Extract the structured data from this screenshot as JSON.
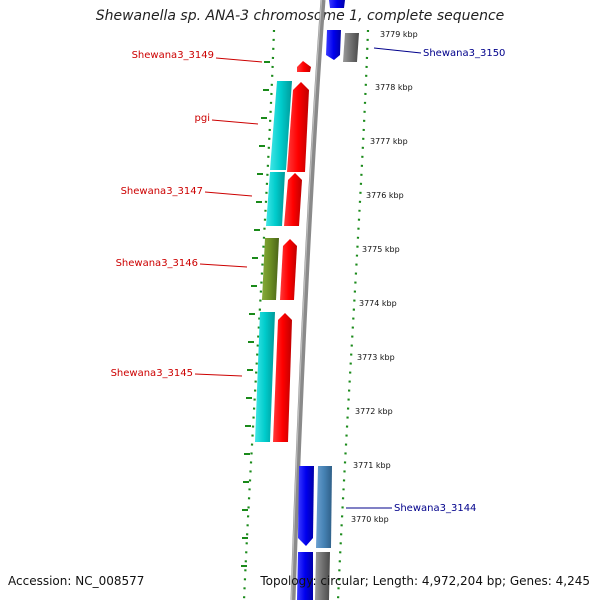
{
  "title": "Shewanella sp. ANA-3 chromosome 1, complete sequence",
  "footer": {
    "accession": "Accession: NC_008577",
    "topology": "Topology: circular; Length: 4,972,204 bp; Genes: 4,245"
  },
  "colors": {
    "background": "#ffffff",
    "backbone": "#8a8a8a",
    "forward_gene": "#ff0000",
    "reverse_gene": "#0000ee",
    "cyan_feature": "#00c8c8",
    "olive_feature": "#6b8e23",
    "steelblue_feature": "#4682b4",
    "gray_feature": "#707070",
    "ticks": "#1a8a1a",
    "label_forward": "#cc0000",
    "label_reverse": "#00008b"
  },
  "scale": {
    "unit": "kbp",
    "ticks": [
      "3779 kbp",
      "3778 kbp",
      "3777 kbp",
      "3776 kbp",
      "3775 kbp",
      "3774 kbp",
      "3773 kbp",
      "3772 kbp",
      "3771 kbp",
      "3770 kbp"
    ]
  },
  "gene_labels": {
    "forward": [
      "Shewana3_3149",
      "pgi",
      "Shewana3_3147",
      "Shewana3_3146",
      "Shewana3_3145"
    ],
    "reverse": [
      "Shewana3_3150",
      "Shewana3_3144"
    ]
  }
}
